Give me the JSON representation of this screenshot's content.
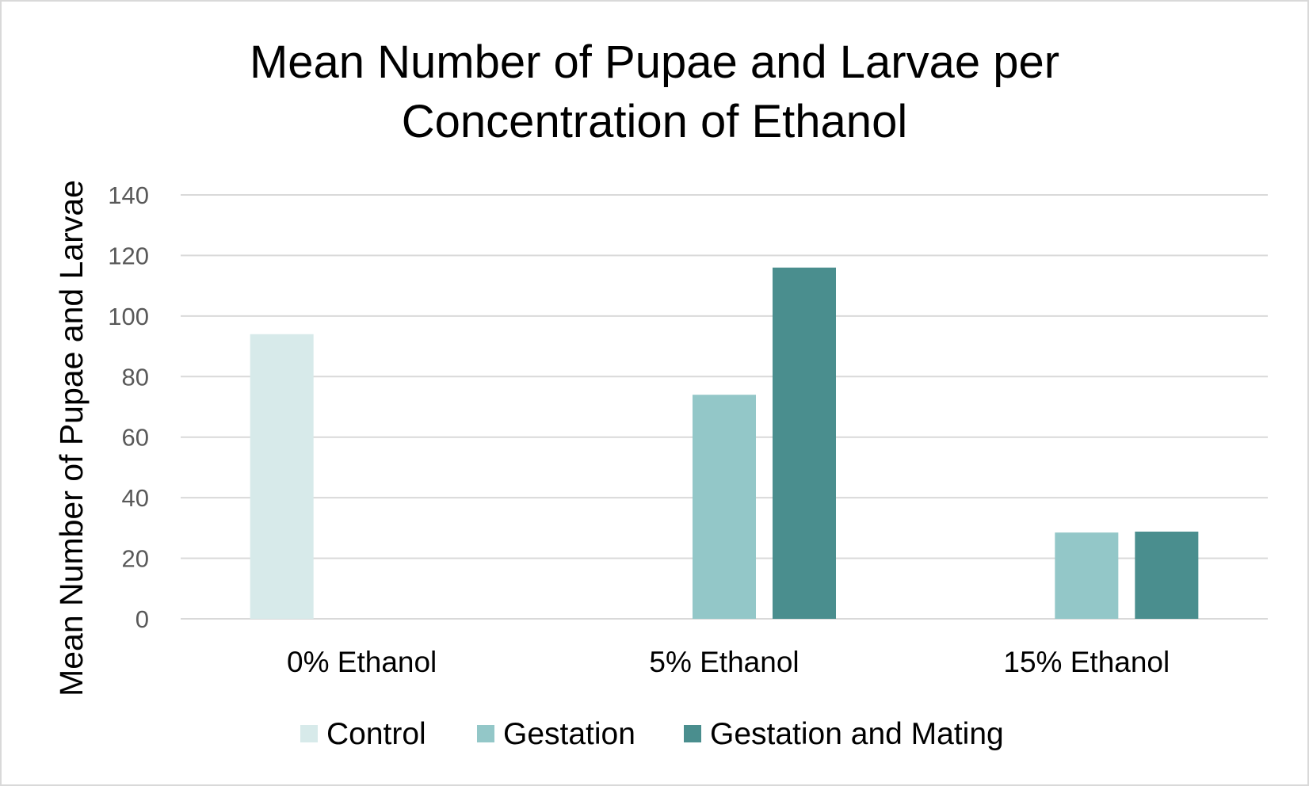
{
  "chart_data": {
    "type": "bar",
    "title_lines": [
      "Mean Number of Pupae and Larvae per",
      "Concentration of Ethanol"
    ],
    "xlabel": "",
    "ylabel": "Mean Number of Pupae and Larvae",
    "categories": [
      "0% Ethanol",
      "5% Ethanol",
      "15% Ethanol"
    ],
    "series": [
      {
        "name": "Control",
        "color": "#d7eaea",
        "values": [
          94,
          null,
          null
        ]
      },
      {
        "name": "Gestation",
        "color": "#93c7c8",
        "values": [
          null,
          74,
          28.5
        ]
      },
      {
        "name": "Gestation and Mating",
        "color": "#4a8e8e",
        "values": [
          null,
          116,
          28.8
        ]
      }
    ],
    "ylim": [
      0,
      140
    ],
    "yticks": [
      "0",
      "20",
      "40",
      "60",
      "80",
      "100",
      "120",
      "140"
    ],
    "grid": true,
    "legend_position": "bottom"
  }
}
